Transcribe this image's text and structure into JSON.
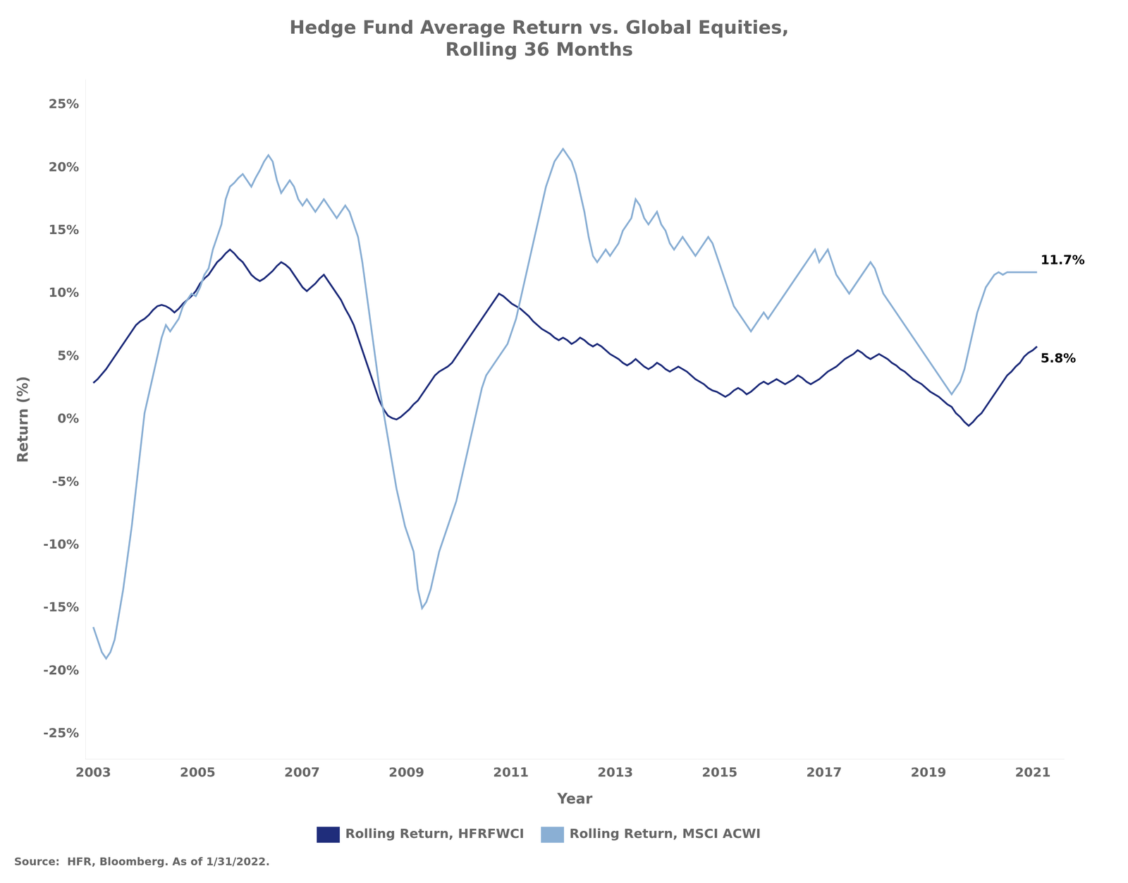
{
  "chart_data": {
    "type": "line",
    "title": "Hedge Fund Average Return vs. Global Equities,\nRolling 36 Months",
    "xlabel": "Year",
    "ylabel": "Return (%)",
    "source": "Source:  HFR, Bloomberg. As of 1/31/2022.",
    "x": [
      2003,
      2003.0818,
      2003.1636,
      2003.2454,
      2003.3272,
      2003.409,
      2003.4909,
      2003.5727,
      2003.6545,
      2003.7363,
      2003.8181,
      2003.8999,
      2003.9817,
      2004.0635,
      2004.1453,
      2004.2271,
      2004.309,
      2004.3908,
      2004.4726,
      2004.5544,
      2004.6362,
      2004.718,
      2004.7998,
      2004.8816,
      2004.9634,
      2005.0452,
      2005.1271,
      2005.2089,
      2005.2907,
      2005.3725,
      2005.4543,
      2005.5361,
      2005.6179,
      2005.6997,
      2005.7815,
      2005.8633,
      2005.9452,
      2006.027,
      2006.1088,
      2006.1906,
      2006.2724,
      2006.3542,
      2006.436,
      2006.5178,
      2006.5996,
      2006.6814,
      2006.7633,
      2006.8451,
      2006.9269,
      2007.0087,
      2007.0905,
      2007.1723,
      2007.2541,
      2007.3359,
      2007.4177,
      2007.4995,
      2007.5814,
      2007.6632,
      2007.745,
      2007.8268,
      2007.9086,
      2007.9904,
      2008.0722,
      2008.154,
      2008.2358,
      2008.3176,
      2008.3995,
      2008.4813,
      2008.5631,
      2008.6449,
      2008.7267,
      2008.8085,
      2008.8903,
      2008.9721,
      2009.0539,
      2009.1357,
      2009.2176,
      2009.2994,
      2009.3812,
      2009.463,
      2009.5448,
      2009.6266,
      2009.7084,
      2009.7902,
      2009.872,
      2009.9538,
      2010.0357,
      2010.1175,
      2010.1993,
      2010.2811,
      2010.3629,
      2010.4447,
      2010.5265,
      2010.6083,
      2010.6901,
      2010.7719,
      2010.8538,
      2010.9356,
      2011.0174,
      2011.0992,
      2011.181,
      2011.2628,
      2011.3446,
      2011.4264,
      2011.5082,
      2011.59,
      2011.6719,
      2011.7537,
      2011.8355,
      2011.9173,
      2011.9991,
      2012.0809,
      2012.1627,
      2012.2445,
      2012.3263,
      2012.4081,
      2012.49,
      2012.5718,
      2012.6536,
      2012.7354,
      2012.8172,
      2012.899,
      2012.9808,
      2013.0626,
      2013.1444,
      2013.2262,
      2013.3081,
      2013.3899,
      2013.4717,
      2013.5535,
      2013.6353,
      2013.7171,
      2013.7989,
      2013.8807,
      2013.9625,
      2014.0443,
      2014.1262,
      2014.208,
      2014.2898,
      2014.3716,
      2014.4534,
      2014.5352,
      2014.617,
      2014.6988,
      2014.7806,
      2014.8624,
      2014.9443,
      2015.0261,
      2015.1079,
      2015.1897,
      2015.2715,
      2015.3533,
      2015.4351,
      2015.5169,
      2015.5987,
      2015.6805,
      2015.7624,
      2015.8442,
      2015.926,
      2016.0078,
      2016.0896,
      2016.1714,
      2016.2532,
      2016.335,
      2016.4168,
      2016.4986,
      2016.5805,
      2016.6623,
      2016.7441,
      2016.8259,
      2016.9077,
      2016.9895,
      2017.0713,
      2017.1531,
      2017.2349,
      2017.3167,
      2017.3986,
      2017.4804,
      2017.5622,
      2017.644,
      2017.7258,
      2017.8076,
      2017.8894,
      2017.9712,
      2018.053,
      2018.1348,
      2018.2167,
      2018.2985,
      2018.3803,
      2018.4621,
      2018.5439,
      2018.6257,
      2018.7075,
      2018.7893,
      2018.8711,
      2018.9529,
      2019.0348,
      2019.1166,
      2019.1984,
      2019.2802,
      2019.362,
      2019.4438,
      2019.5256,
      2019.6074,
      2019.6892,
      2019.771,
      2019.8529,
      2019.9347,
      2020.0165,
      2020.0983,
      2020.1801,
      2020.2619,
      2020.3437,
      2020.4255,
      2020.5073,
      2020.5891,
      2020.671,
      2020.7528,
      2020.8346,
      2020.9164,
      2020.9982,
      2021.08
    ],
    "series": [
      {
        "name": "Rolling Return, MSCI ACWI",
        "color": "#8aafd4",
        "values": [
          -16.5,
          -17.5,
          -18.5,
          -19.0,
          -18.5,
          -17.5,
          -15.5,
          -13.5,
          -11.0,
          -8.5,
          -5.5,
          -2.5,
          0.5,
          2.0,
          3.5,
          5.0,
          6.5,
          7.5,
          7.0,
          7.5,
          8.0,
          9.0,
          9.5,
          10.0,
          9.8,
          10.5,
          11.5,
          12.0,
          13.5,
          14.5,
          15.5,
          17.5,
          18.5,
          18.8,
          19.2,
          19.5,
          19.0,
          18.5,
          19.2,
          19.8,
          20.5,
          21.0,
          20.5,
          19.0,
          18.0,
          18.5,
          19.0,
          18.5,
          17.5,
          17.0,
          17.5,
          17.0,
          16.5,
          17.0,
          17.5,
          17.0,
          16.5,
          16.0,
          16.5,
          17.0,
          16.5,
          15.5,
          14.5,
          12.5,
          10.0,
          7.5,
          5.0,
          2.5,
          0.5,
          -1.5,
          -3.5,
          -5.5,
          -7.0,
          -8.5,
          -9.5,
          -10.5,
          -13.5,
          -15.0,
          -14.5,
          -13.5,
          -12.0,
          -10.5,
          -9.5,
          -8.5,
          -7.5,
          -6.5,
          -5.0,
          -3.5,
          -2.0,
          -0.5,
          1.0,
          2.5,
          3.5,
          4.0,
          4.5,
          5.0,
          5.5,
          6.0,
          7.0,
          8.0,
          9.5,
          11.0,
          12.5,
          14.0,
          15.5,
          17.0,
          18.5,
          19.5,
          20.5,
          21.0,
          21.5,
          21.0,
          20.5,
          19.5,
          18.0,
          16.5,
          14.5,
          13.0,
          12.5,
          13.0,
          13.5,
          13.0,
          13.5,
          14.0,
          15.0,
          15.5,
          16.0,
          17.5,
          17.0,
          16.0,
          15.5,
          16.0,
          16.5,
          15.5,
          15.0,
          14.0,
          13.5,
          14.0,
          14.5,
          14.0,
          13.5,
          13.0,
          13.5,
          14.0,
          14.5,
          14.0,
          13.0,
          12.0,
          11.0,
          10.0,
          9.0,
          8.5,
          8.0,
          7.5,
          7.0,
          7.5,
          8.0,
          8.5,
          8.0,
          8.5,
          9.0,
          9.5,
          10.0,
          10.5,
          11.0,
          11.5,
          12.0,
          12.5,
          13.0,
          13.5,
          12.5,
          13.0,
          13.5,
          12.5,
          11.5,
          11.0,
          10.5,
          10.0,
          10.5,
          11.0,
          11.5,
          12.0,
          12.5,
          12.0,
          11.0,
          10.0,
          9.5,
          9.0,
          8.5,
          8.0,
          7.5,
          7.0,
          6.5,
          6.0,
          5.5,
          5.0,
          4.5,
          4.0,
          3.5,
          3.0,
          2.5,
          2.0,
          2.5,
          3.0,
          4.0,
          5.5,
          7.0,
          8.5,
          9.5,
          10.5,
          11.0,
          11.5,
          11.7,
          11.5,
          11.7,
          11.7,
          11.7,
          11.7,
          11.7,
          11.7,
          11.7,
          11.7
        ]
      },
      {
        "name": "Rolling Return, HFRFWCI",
        "color": "#1f2d7b",
        "values": [
          2.9,
          3.2,
          3.6,
          4.0,
          4.5,
          5.0,
          5.5,
          6.0,
          6.5,
          7.0,
          7.5,
          7.8,
          8.0,
          8.3,
          8.7,
          9.0,
          9.1,
          9.0,
          8.8,
          8.5,
          8.8,
          9.2,
          9.5,
          9.8,
          10.2,
          10.8,
          11.2,
          11.5,
          12.0,
          12.5,
          12.8,
          13.2,
          13.5,
          13.2,
          12.8,
          12.5,
          12.0,
          11.5,
          11.2,
          11.0,
          11.2,
          11.5,
          11.8,
          12.2,
          12.5,
          12.3,
          12.0,
          11.5,
          11.0,
          10.5,
          10.2,
          10.5,
          10.8,
          11.2,
          11.5,
          11.0,
          10.5,
          10.0,
          9.5,
          8.8,
          8.2,
          7.5,
          6.5,
          5.5,
          4.5,
          3.5,
          2.5,
          1.5,
          0.8,
          0.3,
          0.1,
          0.0,
          0.2,
          0.5,
          0.8,
          1.2,
          1.5,
          2.0,
          2.5,
          3.0,
          3.5,
          3.8,
          4.0,
          4.2,
          4.5,
          5.0,
          5.5,
          6.0,
          6.5,
          7.0,
          7.5,
          8.0,
          8.5,
          9.0,
          9.5,
          10.0,
          9.8,
          9.5,
          9.2,
          9.0,
          8.8,
          8.5,
          8.2,
          7.8,
          7.5,
          7.2,
          7.0,
          6.8,
          6.5,
          6.3,
          6.5,
          6.3,
          6.0,
          6.2,
          6.5,
          6.3,
          6.0,
          5.8,
          6.0,
          5.8,
          5.5,
          5.2,
          5.0,
          4.8,
          4.5,
          4.3,
          4.5,
          4.8,
          4.5,
          4.2,
          4.0,
          4.2,
          4.5,
          4.3,
          4.0,
          3.8,
          4.0,
          4.2,
          4.0,
          3.8,
          3.5,
          3.2,
          3.0,
          2.8,
          2.5,
          2.3,
          2.2,
          2.0,
          1.8,
          2.0,
          2.3,
          2.5,
          2.3,
          2.0,
          2.2,
          2.5,
          2.8,
          3.0,
          2.8,
          3.0,
          3.2,
          3.0,
          2.8,
          3.0,
          3.2,
          3.5,
          3.3,
          3.0,
          2.8,
          3.0,
          3.2,
          3.5,
          3.8,
          4.0,
          4.2,
          4.5,
          4.8,
          5.0,
          5.2,
          5.5,
          5.3,
          5.0,
          4.8,
          5.0,
          5.2,
          5.0,
          4.8,
          4.5,
          4.3,
          4.0,
          3.8,
          3.5,
          3.2,
          3.0,
          2.8,
          2.5,
          2.2,
          2.0,
          1.8,
          1.5,
          1.2,
          1.0,
          0.5,
          0.2,
          -0.2,
          -0.5,
          -0.2,
          0.2,
          0.5,
          1.0,
          1.5,
          2.0,
          2.5,
          3.0,
          3.5,
          3.8,
          4.2,
          4.5,
          5.0,
          5.3,
          5.5,
          5.8
        ]
      }
    ],
    "xlim": [
      2002.85,
      2021.6
    ],
    "xticks": [
      2003,
      2005,
      2007,
      2009,
      2011,
      2013,
      2015,
      2017,
      2019,
      2021
    ],
    "ylim": [
      -27,
      27
    ],
    "yticks": [
      {
        "value": -25,
        "label": "-25%"
      },
      {
        "value": -20,
        "label": "-20%"
      },
      {
        "value": -15,
        "label": "-15%"
      },
      {
        "value": -10,
        "label": "-10%"
      },
      {
        "value": -5,
        "label": "-5%"
      },
      {
        "value": 0,
        "label": "0%"
      },
      {
        "value": 5,
        "label": "5%"
      },
      {
        "value": 10,
        "label": "10%"
      },
      {
        "value": 15,
        "label": "15%"
      },
      {
        "value": 20,
        "label": "20%"
      },
      {
        "value": 25,
        "label": "25%"
      }
    ],
    "annotations": [
      {
        "text": "11.7%",
        "x": 2021.08,
        "y": 11.7
      },
      {
        "text": "5.8%",
        "x": 2021.08,
        "y": 5.8
      }
    ],
    "grid": false,
    "legend": "bottom"
  }
}
